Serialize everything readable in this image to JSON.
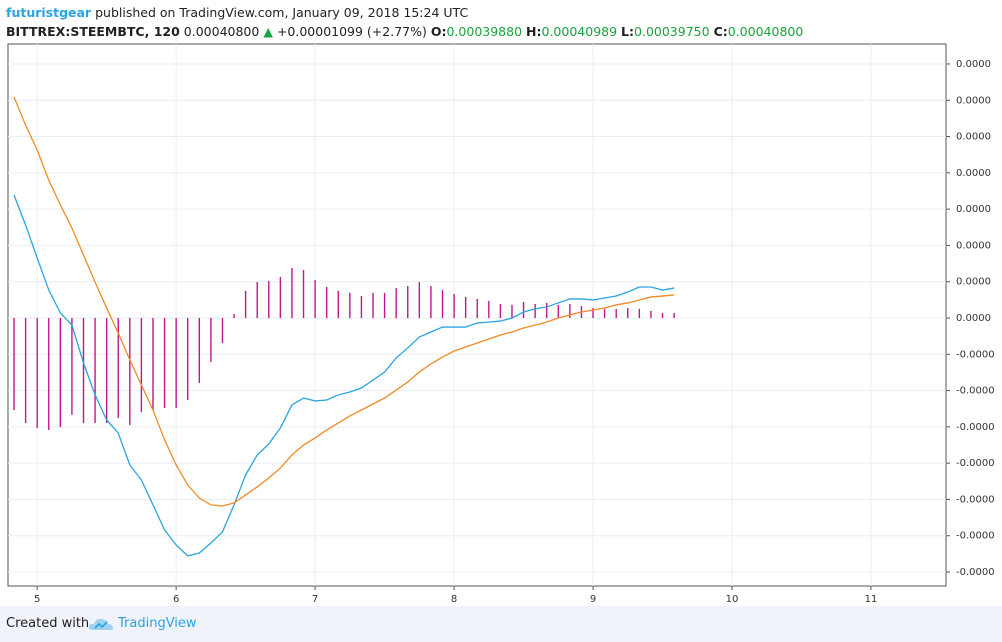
{
  "header": {
    "author": "futuristgear",
    "published": "published on TradingView.com, January 09, 2018 15:24 UTC",
    "symbol": "BITTREX:STEEMBTC, 120",
    "last": "0.00040800",
    "arrow": "▲",
    "change": "+0.00001099 (+2.77%)",
    "o_label": "O:",
    "o": "0.00039880",
    "h_label": "H:",
    "h": "0.00040989",
    "l_label": "L:",
    "l": "0.00039750",
    "c_label": "C:",
    "c": "0.00040800"
  },
  "footer": {
    "created": "Created with",
    "brand": "TradingView"
  },
  "chart_data": {
    "type": "line",
    "x": [
      4.8333,
      4.9167,
      5,
      5.0833,
      5.1667,
      5.25,
      5.3333,
      5.4167,
      5.5,
      5.5833,
      5.6667,
      5.75,
      5.8333,
      5.9167,
      6,
      6.0833,
      6.1667,
      6.25,
      6.3333,
      6.4167,
      6.5,
      6.5833,
      6.6667,
      6.75,
      6.8333,
      6.9167,
      7,
      7.0833,
      7.1667,
      7.25,
      7.3333,
      7.4167,
      7.5,
      7.5833,
      7.6667,
      7.75,
      7.8333,
      7.9167,
      8,
      8.0833,
      8.1667,
      8.25,
      8.3333,
      8.4167,
      8.5,
      8.5833,
      8.6667,
      8.75,
      8.8333,
      8.9167,
      9,
      9.0833,
      9.1667,
      9.25,
      9.3333,
      9.4167,
      9.5,
      9.5833
    ],
    "series": [
      {
        "type": "histogram",
        "color": "#c0168c",
        "values": [
          -5.07e-06,
          -5.79e-06,
          -6.06e-06,
          -6.17e-06,
          -6.01e-06,
          -5.34e-06,
          -5.79e-06,
          -5.79e-06,
          -5.79e-06,
          -5.51e-06,
          -5.9e-06,
          -5.18e-06,
          -5.07e-06,
          -4.96e-06,
          -4.96e-06,
          -4.52e-06,
          -3.58e-06,
          -2.42e-06,
          -1.38e-06,
          2.2e-07,
          1.49e-06,
          1.98e-06,
          2.04e-06,
          2.26e-06,
          2.76e-06,
          2.64e-06,
          2.09e-06,
          1.71e-06,
          1.49e-06,
          1.38e-06,
          1.21e-06,
          1.38e-06,
          1.38e-06,
          1.65e-06,
          1.76e-06,
          1.98e-06,
          1.76e-06,
          1.54e-06,
          1.32e-06,
          1.16e-06,
          1.05e-06,
          9.4e-07,
          7.7e-07,
          7.2e-07,
          8.8e-07,
          7.7e-07,
          8.3e-07,
          7.2e-07,
          7.7e-07,
          6.6e-07,
          5.5e-07,
          5e-07,
          5e-07,
          5.5e-07,
          5e-07,
          3.9e-07,
          2.8e-07,
          2.8e-07
        ]
      },
      {
        "type": "line",
        "color": "#2aa3e0",
        "values": [
          6.78e-06,
          5.12e-06,
          3.31e-06,
          1.54e-06,
          2.8e-07,
          -3.9e-07,
          -2.48e-06,
          -4.24e-06,
          -5.62e-06,
          -6.34e-06,
          -8.1e-06,
          -8.93e-06,
          -1.03e-05,
          -1.168e-05,
          -1.251e-05,
          -1.311e-05,
          -1.295e-05,
          -1.24e-05,
          -1.179e-05,
          -1.03e-05,
          -8.65e-06,
          -7.55e-06,
          -6.94e-06,
          -6.06e-06,
          -4.79e-06,
          -4.41e-06,
          -4.57e-06,
          -4.52e-06,
          -4.24e-06,
          -4.08e-06,
          -3.86e-06,
          -3.42e-06,
          -2.98e-06,
          -2.2e-06,
          -1.65e-06,
          -1.05e-06,
          -7.7e-07,
          -5e-07,
          -5e-07,
          -5e-07,
          -2.8e-07,
          -2.2e-07,
          -1.7e-07,
          0,
          3.3e-07,
          5e-07,
          6.1e-07,
          8.3e-07,
          1.05e-06,
          1.05e-06,
          9.9e-07,
          1.1e-06,
          1.21e-06,
          1.43e-06,
          1.71e-06,
          1.71e-06,
          1.54e-06,
          1.65e-06
        ]
      },
      {
        "type": "line",
        "color": "#f08a24",
        "values": [
          1.218e-05,
          1.063e-05,
          9.26e-06,
          7.6e-06,
          6.23e-06,
          4.96e-06,
          3.47e-06,
          1.98e-06,
          5.5e-07,
          -8.3e-07,
          -2.31e-06,
          -3.69e-06,
          -5.07e-06,
          -6.72e-06,
          -8.1e-06,
          -9.2e-06,
          -9.92e-06,
          -1.03e-05,
          -1.036e-05,
          -1.019e-05,
          -9.75e-06,
          -9.31e-06,
          -8.82e-06,
          -8.27e-06,
          -7.55e-06,
          -7e-06,
          -6.61e-06,
          -6.17e-06,
          -5.79e-06,
          -5.4e-06,
          -5.07e-06,
          -4.74e-06,
          -4.41e-06,
          -3.97e-06,
          -3.53e-06,
          -2.98e-06,
          -2.53e-06,
          -2.15e-06,
          -1.82e-06,
          -1.6e-06,
          -1.38e-06,
          -1.16e-06,
          -9.4e-07,
          -7.7e-07,
          -5.5e-07,
          -3.9e-07,
          -2.2e-07,
          0,
          1.7e-07,
          3.3e-07,
          4.4e-07,
          5.5e-07,
          7.2e-07,
          8.3e-07,
          9.9e-07,
          1.16e-06,
          1.21e-06,
          1.27e-06
        ]
      }
    ],
    "xlim": [
      4.79,
      11.54
    ],
    "xticks": [
      5,
      6,
      7,
      8,
      9,
      10,
      11
    ],
    "ylim": [
      -1.477e-05,
      1.51e-05
    ],
    "yticks": [
      {
        "value": 1.4e-05,
        "label": "0.0000"
      },
      {
        "value": 1.2e-05,
        "label": "0.0000"
      },
      {
        "value": 1e-05,
        "label": "0.0000"
      },
      {
        "value": 8e-06,
        "label": "0.0000"
      },
      {
        "value": 6e-06,
        "label": "0.0000"
      },
      {
        "value": 4e-06,
        "label": "0.0000"
      },
      {
        "value": 2e-06,
        "label": "0.0000"
      },
      {
        "value": 0,
        "label": "0.0000"
      },
      {
        "value": -2e-06,
        "label": "-0.0000"
      },
      {
        "value": -4e-06,
        "label": "-0.0000"
      },
      {
        "value": -6e-06,
        "label": "-0.0000"
      },
      {
        "value": -8e-06,
        "label": "-0.0000"
      },
      {
        "value": -1e-05,
        "label": "-0.0000"
      },
      {
        "value": -1.2e-05,
        "label": "-0.0000"
      },
      {
        "value": -1.4e-05,
        "label": "-0.0000"
      }
    ],
    "grid": true,
    "y_axis_side": "right"
  }
}
